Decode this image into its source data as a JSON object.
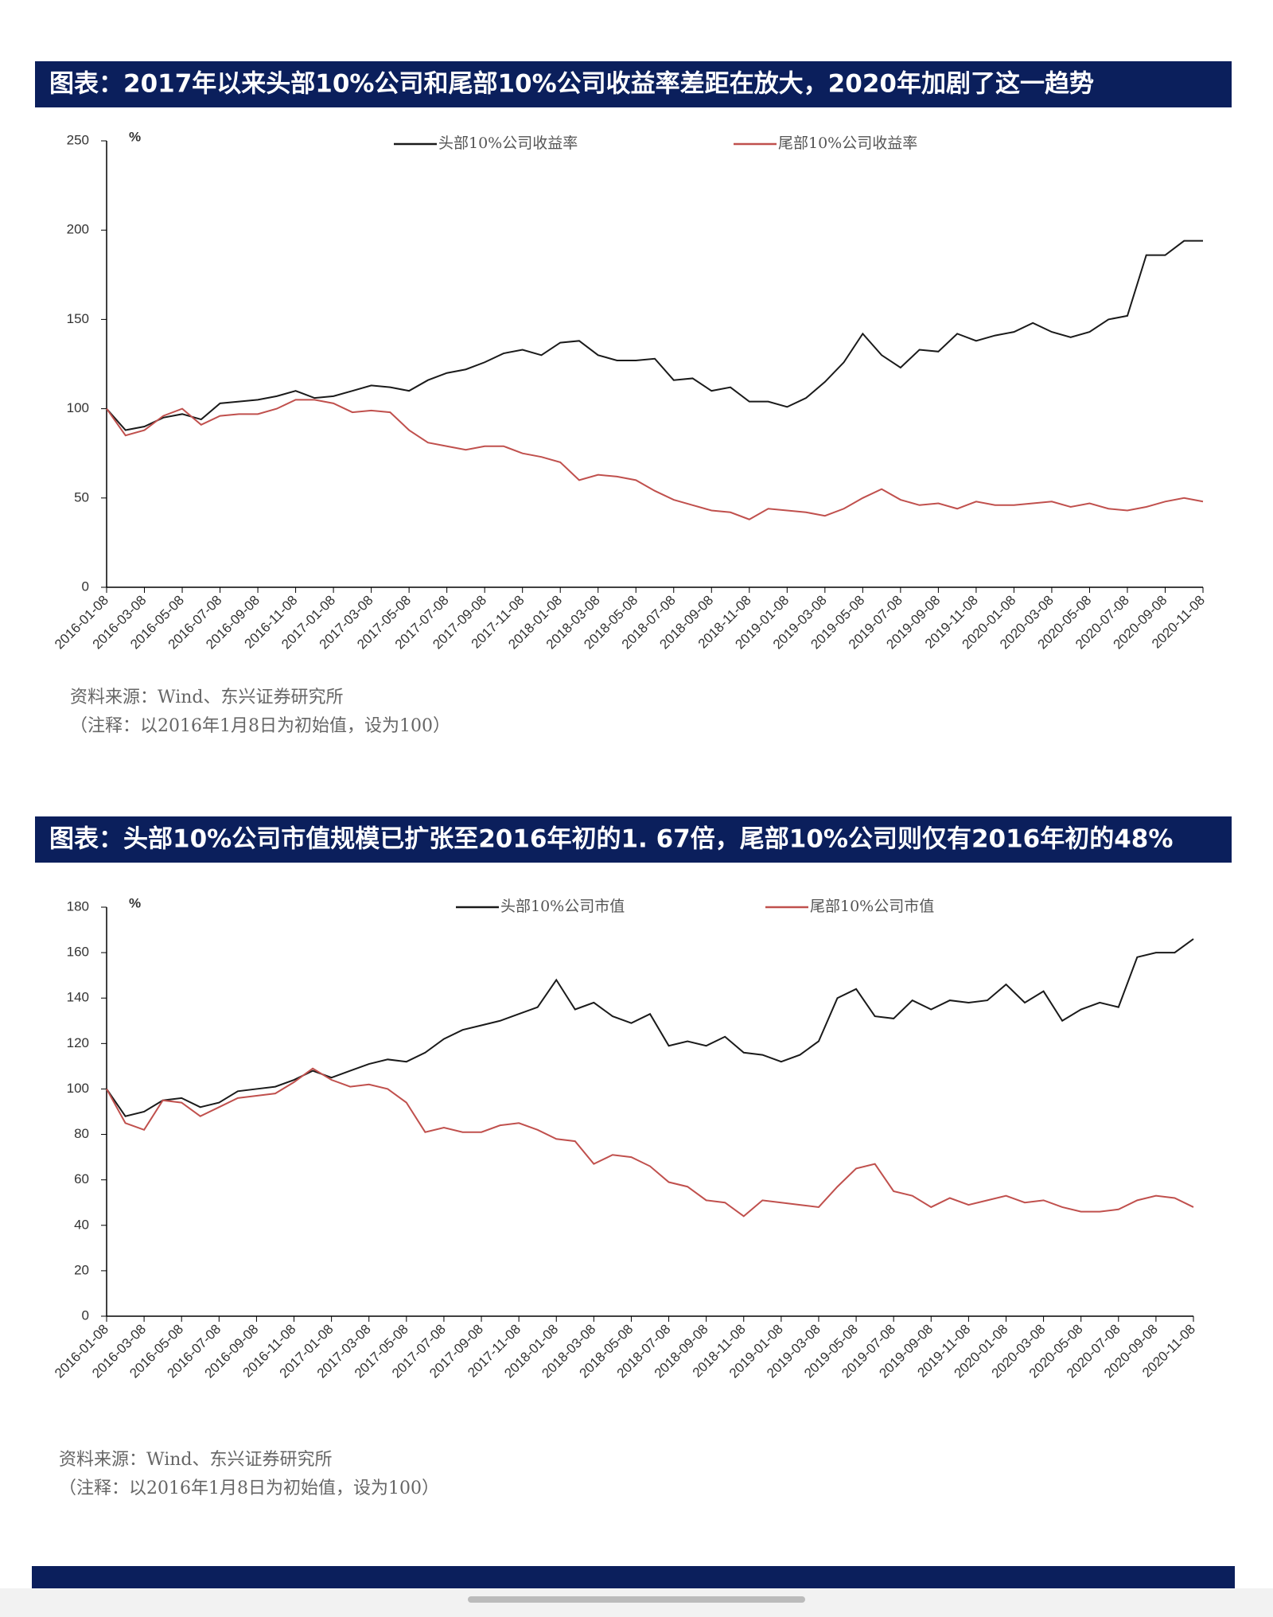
{
  "chart_data": [
    {
      "type": "line",
      "title": "图表：2017年以来头部10%公司和尾部10%公司收益率差距在放大，2020年加剧了这一趋势",
      "y_label": "%",
      "categories": [
        "2016-01-08",
        null,
        "2016-03-08",
        null,
        "2016-05-08",
        null,
        "2016-07-08",
        null,
        "2016-09-08",
        null,
        "2016-11-08",
        null,
        "2017-01-08",
        null,
        "2017-03-08",
        null,
        "2017-05-08",
        null,
        "2017-07-08",
        null,
        "2017-09-08",
        null,
        "2017-11-08",
        null,
        "2018-01-08",
        null,
        "2018-03-08",
        null,
        "2018-05-08",
        null,
        "2018-07-08",
        null,
        "2018-09-08",
        null,
        "2018-11-08",
        null,
        "2019-01-08",
        null,
        "2019-03-08",
        null,
        "2019-05-08",
        null,
        "2019-07-08",
        null,
        "2019-09-08",
        null,
        "2019-11-08",
        null,
        "2020-01-08",
        null,
        "2020-03-08",
        null,
        "2020-05-08",
        null,
        "2020-07-08",
        null,
        "2020-09-08",
        null,
        "2020-11-08"
      ],
      "series": [
        {
          "name": "头部10%公司收益率",
          "color": "#1a1a1a",
          "values": [
            100,
            88,
            90,
            95,
            97,
            94,
            103,
            104,
            105,
            107,
            110,
            106,
            107,
            110,
            113,
            112,
            110,
            116,
            120,
            122,
            126,
            131,
            133,
            130,
            137,
            138,
            130,
            127,
            127,
            128,
            116,
            117,
            110,
            112,
            104,
            104,
            101,
            106,
            115,
            126,
            142,
            130,
            123,
            133,
            132,
            142,
            138,
            141,
            143,
            148,
            143,
            140,
            143,
            150,
            152,
            186,
            186,
            194,
            194
          ]
        },
        {
          "name": "尾部10%公司收益率",
          "color": "#c0504d",
          "values": [
            100,
            85,
            88,
            96,
            100,
            91,
            96,
            97,
            97,
            100,
            105,
            105,
            103,
            98,
            99,
            98,
            88,
            81,
            79,
            77,
            79,
            79,
            75,
            73,
            70,
            60,
            63,
            62,
            60,
            54,
            49,
            46,
            43,
            42,
            38,
            44,
            43,
            42,
            40,
            44,
            50,
            55,
            49,
            46,
            47,
            44,
            48,
            46,
            46,
            47,
            48,
            45,
            47,
            44,
            43,
            45,
            48,
            50,
            48
          ]
        }
      ],
      "ylim": [
        0,
        250
      ],
      "yticks": [
        0,
        50,
        100,
        150,
        200,
        250
      ],
      "source": "资料来源：Wind、东兴证券研究所",
      "note": "（注释：以2016年1月8日为初始值，设为100）"
    },
    {
      "type": "line",
      "title": "图表：头部10%公司市值规模已扩张至2016年初的1. 67倍，尾部10%公司则仅有2016年初的48%",
      "y_label": "%",
      "categories": [
        "2016-01-08",
        null,
        "2016-03-08",
        null,
        "2016-05-08",
        null,
        "2016-07-08",
        null,
        "2016-09-08",
        null,
        "2016-11-08",
        null,
        "2017-01-08",
        null,
        "2017-03-08",
        null,
        "2017-05-08",
        null,
        "2017-07-08",
        null,
        "2017-09-08",
        null,
        "2017-11-08",
        null,
        "2018-01-08",
        null,
        "2018-03-08",
        null,
        "2018-05-08",
        null,
        "2018-07-08",
        null,
        "2018-09-08",
        null,
        "2018-11-08",
        null,
        "2019-01-08",
        null,
        "2019-03-08",
        null,
        "2019-05-08",
        null,
        "2019-07-08",
        null,
        "2019-09-08",
        null,
        "2019-11-08",
        null,
        "2020-01-08",
        null,
        "2020-03-08",
        null,
        "2020-05-08",
        null,
        "2020-07-08",
        null,
        "2020-09-08",
        null,
        "2020-11-08"
      ],
      "series": [
        {
          "name": "头部10%公司市值",
          "color": "#1a1a1a",
          "values": [
            100,
            88,
            90,
            95,
            96,
            92,
            94,
            99,
            100,
            101,
            104,
            108,
            105,
            108,
            111,
            113,
            112,
            116,
            122,
            126,
            128,
            130,
            133,
            136,
            148,
            135,
            138,
            132,
            129,
            133,
            119,
            121,
            119,
            123,
            116,
            115,
            112,
            115,
            121,
            140,
            144,
            132,
            131,
            139,
            135,
            139,
            138,
            139,
            146,
            138,
            143,
            130,
            135,
            138,
            136,
            158,
            160,
            160,
            166
          ]
        },
        {
          "name": "尾部10%公司市值",
          "color": "#c0504d",
          "values": [
            100,
            85,
            82,
            95,
            94,
            88,
            92,
            96,
            97,
            98,
            103,
            109,
            104,
            101,
            102,
            100,
            94,
            81,
            83,
            81,
            81,
            84,
            85,
            82,
            78,
            77,
            67,
            71,
            70,
            66,
            59,
            57,
            51,
            50,
            44,
            51,
            50,
            49,
            48,
            57,
            65,
            67,
            55,
            53,
            48,
            52,
            49,
            51,
            53,
            50,
            51,
            48,
            46,
            46,
            47,
            51,
            53,
            52,
            48
          ]
        }
      ],
      "ylim": [
        0,
        180
      ],
      "yticks": [
        0,
        20,
        40,
        60,
        80,
        100,
        120,
        140,
        160,
        180
      ],
      "source": "资料来源：Wind、东兴证券研究所",
      "note": "（注释：以2016年1月8日为初始值，设为100）"
    }
  ]
}
